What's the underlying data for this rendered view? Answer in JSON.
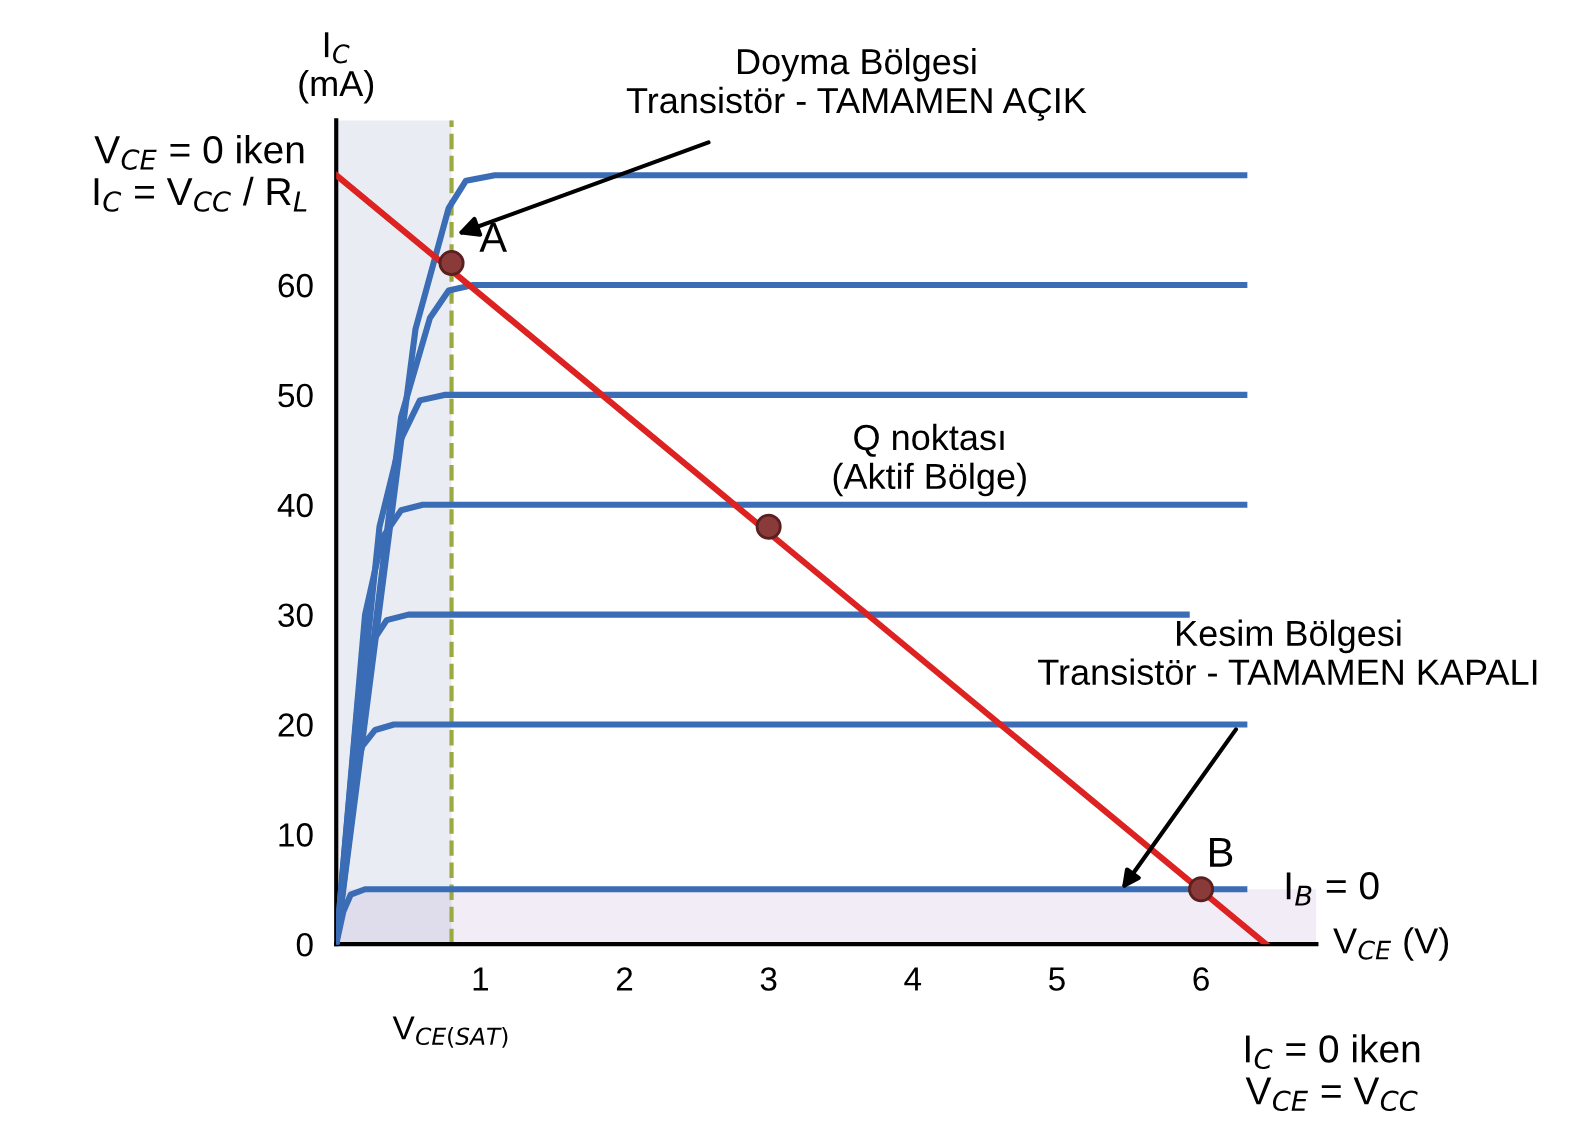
{
  "chart_data": {
    "type": "line",
    "xlabel": "V$_{CE}$ (V)",
    "ylabel": "I$_{C}$\n(mA)",
    "xlim": [
      0,
      6.8
    ],
    "ylim": [
      0,
      75
    ],
    "xticks": [
      1,
      2,
      3,
      4,
      5,
      6
    ],
    "yticks": [
      0,
      10,
      20,
      30,
      40,
      50,
      60
    ],
    "grid": false,
    "marker": "none",
    "line_style": "solid",
    "series": [
      {
        "color": "#3a6db5",
        "x": [
          0,
          0.55,
          0.78,
          0.9,
          1.1,
          6.3
        ],
        "values": [
          0,
          56,
          67,
          69.5,
          70,
          70
        ]
      },
      {
        "color": "#3a6db5",
        "x": [
          0,
          0.45,
          0.65,
          0.78,
          0.95,
          6.3
        ],
        "values": [
          0,
          48,
          57,
          59.5,
          60,
          60
        ]
      },
      {
        "color": "#3a6db5",
        "x": [
          0,
          0.3,
          0.45,
          0.58,
          0.75,
          6.3
        ],
        "values": [
          0,
          38,
          46,
          49.5,
          50,
          50
        ]
      },
      {
        "color": "#3a6db5",
        "x": [
          0,
          0.2,
          0.32,
          0.45,
          0.6,
          6.3
        ],
        "values": [
          0,
          30,
          37,
          39.5,
          40,
          40
        ]
      },
      {
        "color": "#3a6db5",
        "x": [
          0,
          0.15,
          0.25,
          0.35,
          0.5,
          5.9
        ],
        "values": [
          0,
          22,
          27.5,
          29.5,
          30,
          30
        ]
      },
      {
        "color": "#3a6db5",
        "x": [
          0,
          0.1,
          0.18,
          0.27,
          0.4,
          6.3
        ],
        "values": [
          0,
          14,
          18,
          19.5,
          20,
          20
        ]
      },
      {
        "color": "#3a6db5",
        "x": [
          0,
          0.05,
          0.1,
          0.2,
          6.3
        ],
        "values": [
          0,
          3,
          4.5,
          5,
          5
        ]
      },
      {
        "color": "#dd2222",
        "x": [
          0,
          6.45
        ],
        "values": [
          70,
          0
        ]
      },
      {
        "type": "scatter",
        "marker": "circle",
        "color": "#8b3a3a",
        "x": [
          0.8,
          3,
          6.0
        ],
        "values": [
          62,
          38,
          5
        ]
      }
    ],
    "ref_lines": [
      {
        "axis": "x",
        "value": 0.8,
        "label": "V$_{CE(SAT)}$",
        "color": "#9aaa40",
        "line_style": "dashed"
      }
    ],
    "bands": [
      {
        "axis": "x",
        "from": 0,
        "to": 0.8,
        "color": "#5a78a8"
      },
      {
        "axis": "y",
        "from": 0,
        "to": 5,
        "color": "#a070c0"
      }
    ],
    "annotations": [
      "Doyma Bölgesi\nTransistör - TAMAMEN AÇIK",
      {
        "text": "Kesim Bölgesi\nTransistör - TAMAMEN KAPALI",
        "x": 5.45,
        "y": 5
      },
      {
        "text": "A",
        "x": 0.8,
        "y": 62
      },
      {
        "text": "B",
        "x": 6.0,
        "y": 5
      },
      {
        "text": "Q noktası\n(Aktif Bölge)",
        "x": 3,
        "y": 38
      },
      {
        "text": "I$_{B}$ = 0",
        "x": 6.3,
        "y": 5
      },
      "V$_{CE}$ = 0 iken\nI$_{C}$ = V$_{CC}$ / R$_{L}$",
      "I$_{C}$ = 0 iken\nV$_{CE}$ = V$_{CC}$"
    ]
  }
}
